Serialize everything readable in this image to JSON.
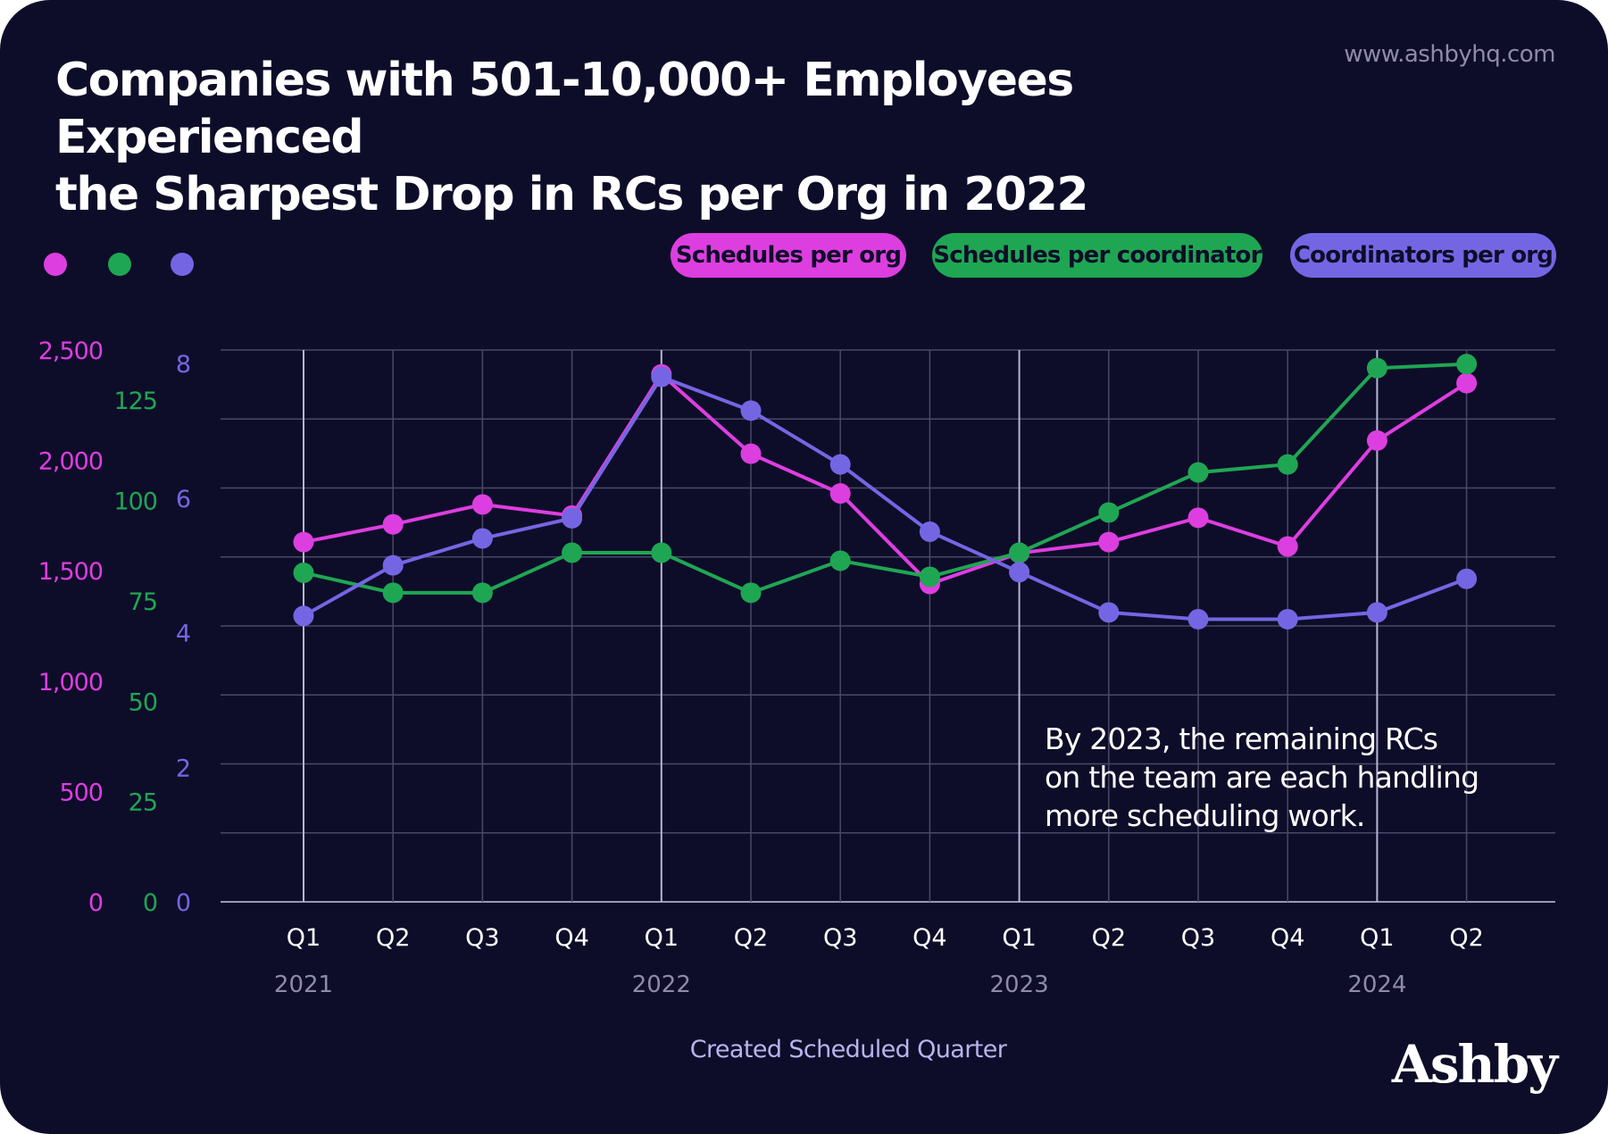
{
  "website": "www.ashbyhq.com",
  "brand": "Ashby",
  "colors": {
    "background": "#0e0d29",
    "magenta": "#dd3ee0",
    "green": "#1fa653",
    "purple": "#7466e3",
    "grid": "#4a4866",
    "text_muted": "#8e8aa8"
  },
  "chart_data": {
    "type": "line",
    "title": "Companies with 501-10,000+ Employees Experienced the Sharpest Drop in RCs per Org in 2022",
    "title_lines": [
      "Companies with 501-10,000+ Employees Experienced",
      "the Sharpest Drop in RCs per Org in 2022"
    ],
    "xlabel": "Created Scheduled Quarter",
    "categories": [
      "Q1",
      "Q2",
      "Q3",
      "Q4",
      "Q1",
      "Q2",
      "Q3",
      "Q4",
      "Q1",
      "Q2",
      "Q3",
      "Q4",
      "Q1",
      "Q2"
    ],
    "years": [
      {
        "label": "2021",
        "index": 0
      },
      {
        "label": "2022",
        "index": 4
      },
      {
        "label": "2023",
        "index": 8
      },
      {
        "label": "2024",
        "index": 12
      }
    ],
    "axes": [
      {
        "id": "orgs",
        "color": "#dd3ee0",
        "ylim": [
          0,
          2500
        ],
        "ticks": [
          0,
          500,
          1000,
          1500,
          2000,
          2500
        ],
        "tick_labels": [
          "0",
          "500",
          "1,000",
          "1,500",
          "2,000",
          "2,500"
        ]
      },
      {
        "id": "coord",
        "color": "#1fa653",
        "ylim": [
          0,
          137.5
        ],
        "ticks": [
          0,
          25,
          50,
          75,
          100,
          125
        ],
        "tick_labels": [
          "0",
          "25",
          "50",
          "75",
          "100",
          "125"
        ]
      },
      {
        "id": "count",
        "color": "#7466e3",
        "ylim": [
          0,
          8.2
        ],
        "ticks": [
          0,
          2,
          4,
          6,
          8
        ],
        "tick_labels": [
          "0",
          "2",
          "4",
          "6",
          "8"
        ]
      }
    ],
    "series": [
      {
        "name": "Schedules per org",
        "axis": "orgs",
        "color": "#dd3ee0",
        "values": [
          1630,
          1710,
          1800,
          1750,
          2390,
          2030,
          1850,
          1440,
          1580,
          1630,
          1740,
          1610,
          2090,
          2350
        ]
      },
      {
        "name": "Schedules per coordinator",
        "axis": "coord",
        "color": "#1fa653",
        "values": [
          82,
          77,
          77,
          87,
          87,
          77,
          85,
          81,
          87,
          97,
          107,
          109,
          133,
          134
        ]
      },
      {
        "name": "Coordinators per org",
        "axis": "count",
        "color": "#7466e3",
        "values": [
          4.25,
          5.0,
          5.4,
          5.7,
          7.8,
          7.3,
          6.5,
          5.5,
          4.9,
          4.3,
          4.2,
          4.2,
          4.3,
          4.8
        ]
      }
    ],
    "annotation": "By 2023, the remaining RCs on the team are each handling more scheduling work.",
    "annotation_lines": [
      "By 2023, the remaining RCs",
      "on the team are each handling",
      "more scheduling work."
    ],
    "grid": true,
    "legend_position": "top-right"
  }
}
